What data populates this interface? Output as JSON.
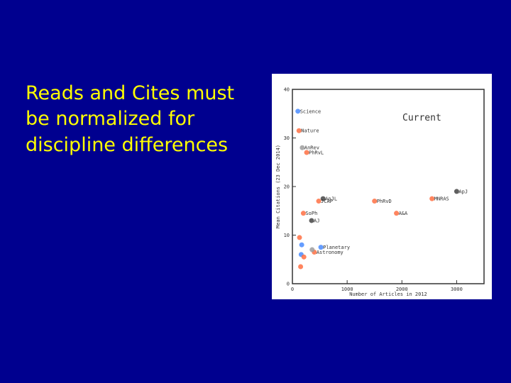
{
  "slide": {
    "lines": [
      "Reads and Cites must",
      "be normalized for",
      "discipline differences"
    ]
  },
  "chart_data": {
    "type": "scatter",
    "annotation": "Current",
    "xlabel": "Number of Articles in 2012",
    "ylabel": "Mean Citations (23 Dec 2014)",
    "xlim": [
      0,
      3500
    ],
    "ylim": [
      0,
      40
    ],
    "xticks": [
      0,
      1000,
      2000,
      3000
    ],
    "yticks": [
      0,
      10,
      20,
      30,
      40
    ],
    "grid": false,
    "points": [
      {
        "label": "Science",
        "x": 100,
        "y": 35.5,
        "color": "#4a8cff"
      },
      {
        "label": "Nature",
        "x": 120,
        "y": 31.5,
        "color": "#ff7043"
      },
      {
        "label": "AnRev",
        "x": 180,
        "y": 28,
        "color": "#9e9e9e"
      },
      {
        "label": "PhRvL",
        "x": 260,
        "y": 27,
        "color": "#ff7043"
      },
      {
        "label": "ApJ",
        "x": 3000,
        "y": 19,
        "color": "#444444"
      },
      {
        "label": "ApJL",
        "x": 560,
        "y": 17.5,
        "color": "#444444"
      },
      {
        "label": "JCAP",
        "x": 480,
        "y": 17,
        "color": "#ff7043"
      },
      {
        "label": "PhRvD",
        "x": 1500,
        "y": 17,
        "color": "#ff7043"
      },
      {
        "label": "MNRAS",
        "x": 2550,
        "y": 17.5,
        "color": "#ff7043"
      },
      {
        "label": "A&A",
        "x": 1900,
        "y": 14.5,
        "color": "#ff7043"
      },
      {
        "label": "SoPh",
        "x": 200,
        "y": 14.5,
        "color": "#ff7043"
      },
      {
        "label": "AJ",
        "x": 350,
        "y": 13,
        "color": "#444444"
      },
      {
        "label": "Planetary",
        "x": 520,
        "y": 7.5,
        "color": "#4a8cff"
      },
      {
        "label": "Astronomy",
        "x": 400,
        "y": 6.5,
        "color": "#ff7043"
      },
      {
        "label": "",
        "x": 130,
        "y": 9.5,
        "color": "#ff7043"
      },
      {
        "label": "",
        "x": 170,
        "y": 8,
        "color": "#4a8cff"
      },
      {
        "label": "",
        "x": 160,
        "y": 6,
        "color": "#4a8cff"
      },
      {
        "label": "",
        "x": 210,
        "y": 5.5,
        "color": "#ff7043"
      },
      {
        "label": "",
        "x": 360,
        "y": 7,
        "color": "#9e9e9e"
      },
      {
        "label": "",
        "x": 150,
        "y": 3.5,
        "color": "#ff7043"
      }
    ]
  }
}
